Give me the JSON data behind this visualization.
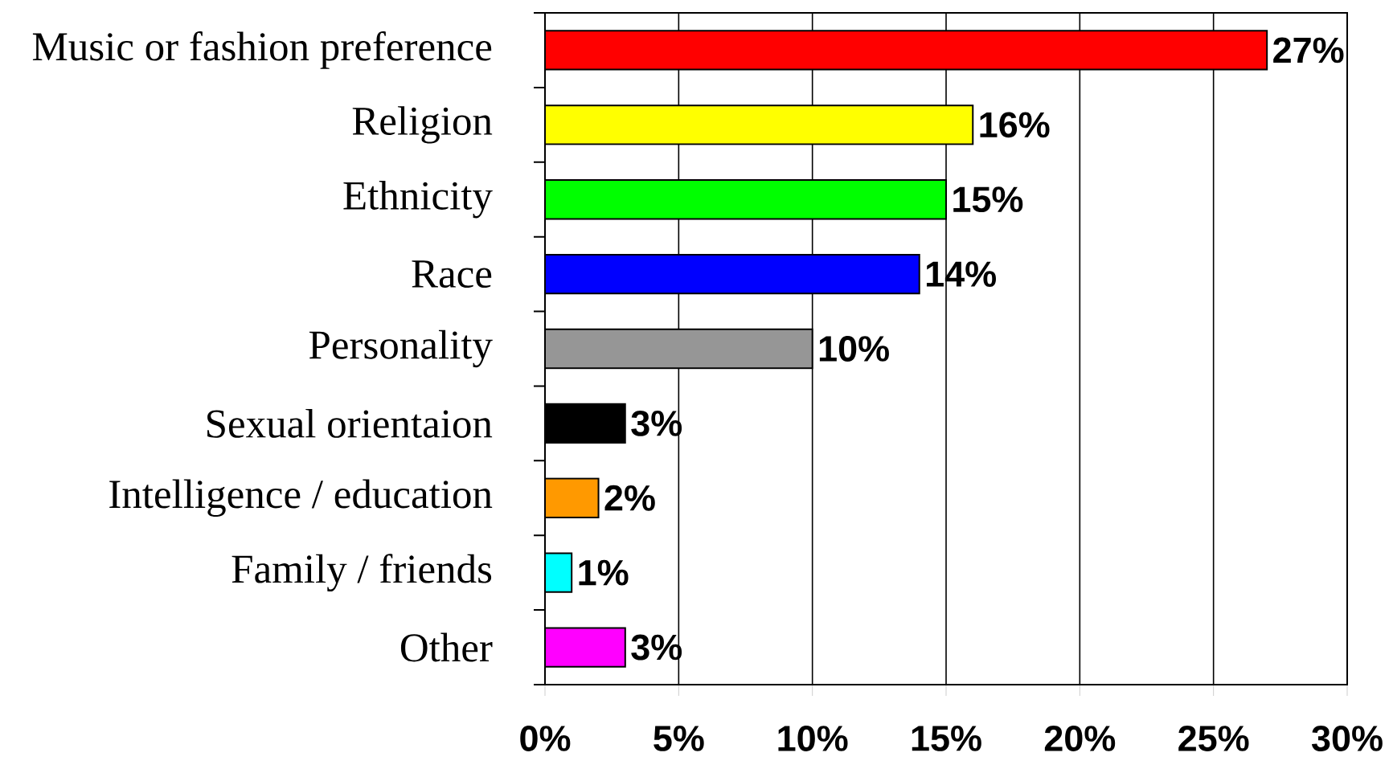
{
  "chart_data": {
    "type": "bar",
    "orientation": "horizontal",
    "categories": [
      "Music or fashion preference",
      "Religion",
      "Ethnicity",
      "Race",
      "Personality",
      "Sexual orientaion",
      "Intelligence / education",
      "Family / friends",
      "Other"
    ],
    "values": [
      27,
      16,
      15,
      14,
      10,
      3,
      2,
      1,
      3
    ],
    "colors": [
      "#ff0000",
      "#ffff00",
      "#00ff00",
      "#0000ff",
      "#969696",
      "#000000",
      "#ff9900",
      "#00ffff",
      "#ff00ff"
    ],
    "value_labels": [
      "27%",
      "16%",
      "15%",
      "14%",
      "10%",
      "3%",
      "2%",
      "1%",
      "3%"
    ],
    "xlim": [
      0,
      30
    ],
    "xticks": [
      {
        "value": 0,
        "label": "0%"
      },
      {
        "value": 5,
        "label": "5%"
      },
      {
        "value": 10,
        "label": "10%"
      },
      {
        "value": 15,
        "label": "15%"
      },
      {
        "value": 20,
        "label": "20%"
      },
      {
        "value": 25,
        "label": "25%"
      },
      {
        "value": 30,
        "label": "30%"
      }
    ],
    "grid": "x"
  }
}
